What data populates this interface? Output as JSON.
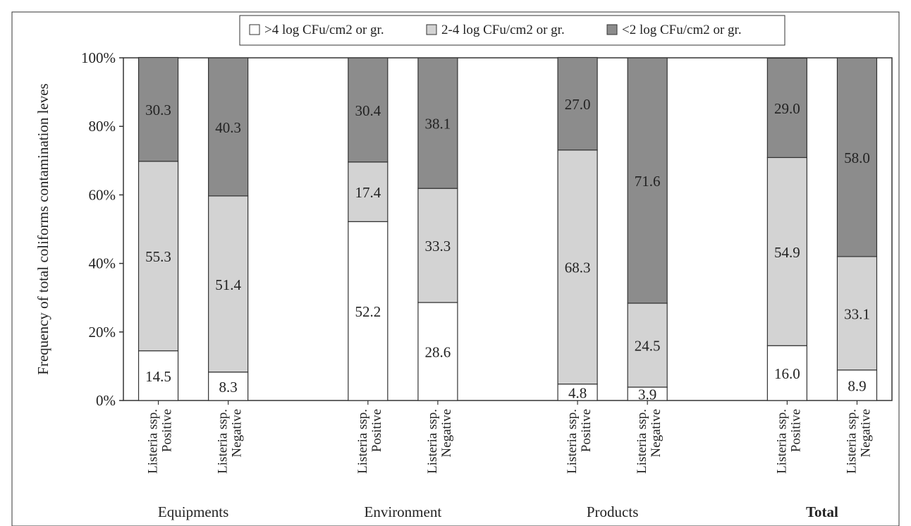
{
  "chart_data": {
    "type": "bar",
    "stacked": true,
    "ylabel": "Frequency of total coliforms contamination leves",
    "ylim": [
      0,
      100
    ],
    "y_ticks": [
      "0%",
      "20%",
      "40%",
      "60%",
      "80%",
      "100%"
    ],
    "legend": {
      "placement": "top",
      "entries": [
        {
          "label": ">4 log CFu/cm2 or gr.",
          "color": "#ffffff"
        },
        {
          "label": "2-4 log CFu/cm2 or gr.",
          "color": "#d3d3d3"
        },
        {
          "label": "<2 log CFu/cm2 or gr.",
          "color": "#8c8c8c"
        }
      ]
    },
    "groups": [
      {
        "name": "Equipments",
        "bold": false
      },
      {
        "name": "Environment",
        "bold": false
      },
      {
        "name": "Products",
        "bold": false
      },
      {
        "name": "Total",
        "bold": true
      }
    ],
    "bars": [
      {
        "group": 0,
        "line1": "Listeria ssp.",
        "line2": "Positive",
        "values": [
          14.5,
          55.3,
          30.3
        ]
      },
      {
        "group": 0,
        "line1": "Listeria ssp.",
        "line2": "Negative",
        "values": [
          8.3,
          51.4,
          40.3
        ]
      },
      {
        "group": 1,
        "line1": "Listeria ssp.",
        "line2": "Positive",
        "values": [
          52.2,
          17.4,
          30.4
        ]
      },
      {
        "group": 1,
        "line1": "Listeria ssp.",
        "line2": "Negative",
        "values": [
          28.6,
          33.3,
          38.1
        ]
      },
      {
        "group": 2,
        "line1": "Listeria ssp.",
        "line2": "Positive",
        "values": [
          4.8,
          68.3,
          27.0
        ]
      },
      {
        "group": 2,
        "line1": "Listeria ssp.",
        "line2": "Negative",
        "values": [
          3.9,
          24.5,
          71.6
        ]
      },
      {
        "group": 3,
        "line1": "Listeria ssp.",
        "line2": "Positive",
        "values": [
          16.0,
          54.9,
          29.0
        ]
      },
      {
        "group": 3,
        "line1": "Listeria ssp.",
        "line2": "Negative",
        "values": [
          8.9,
          33.1,
          58.0
        ]
      }
    ],
    "value_labels": [
      [
        "14.5",
        "55.3",
        "30.3"
      ],
      [
        "8.3",
        "51.4",
        "40.3"
      ],
      [
        "52.2",
        "17.4",
        "30.4"
      ],
      [
        "28.6",
        "33.3",
        "38.1"
      ],
      [
        "4.8",
        "68.3",
        "27.0"
      ],
      [
        "3.9",
        "24.5",
        "71.6"
      ],
      [
        "16.0",
        "54.9",
        "29.0"
      ],
      [
        "8.9",
        "33.1",
        "58.0"
      ]
    ]
  }
}
